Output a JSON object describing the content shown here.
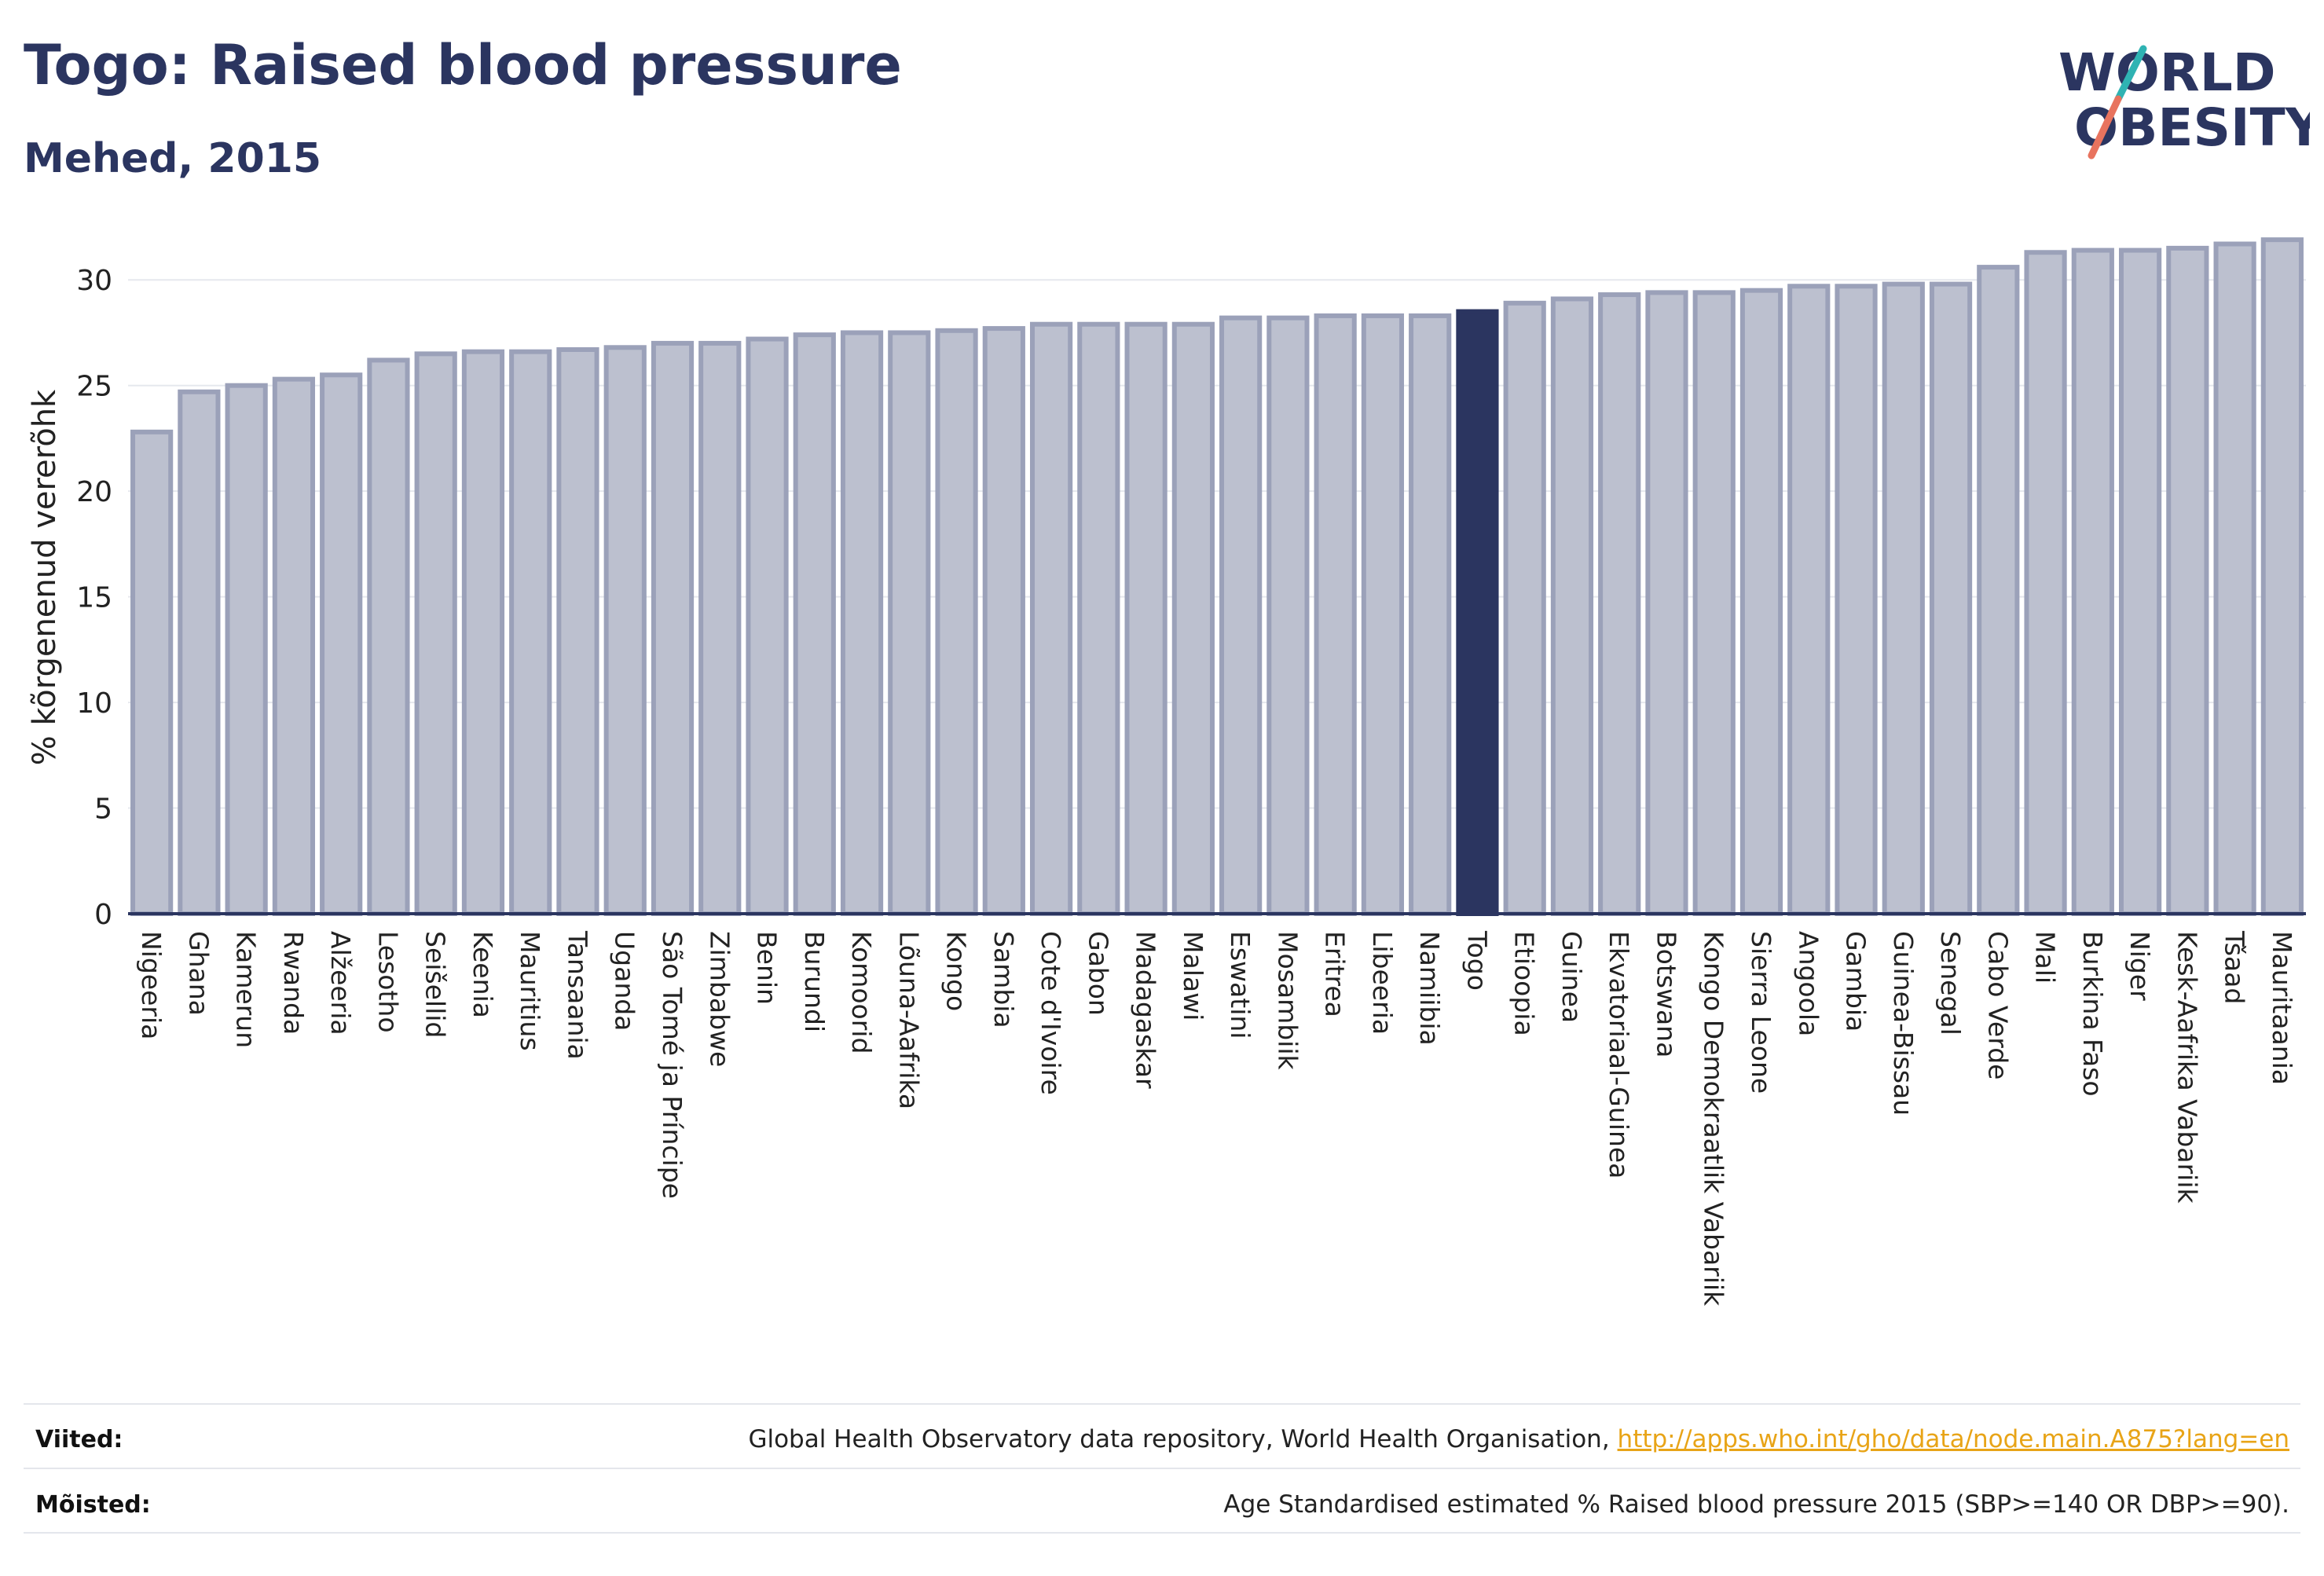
{
  "header": {
    "title": "Togo: Raised blood pressure",
    "subtitle": "Mehed, 2015"
  },
  "logo": {
    "line1": "WORLD",
    "line2": "OBESITY",
    "colors": {
      "text": "#2b3560",
      "slash_teal": "#2fb3b3",
      "slash_coral": "#e8735e"
    }
  },
  "colors": {
    "bar_fill": "#bcc0cf",
    "bar_stroke": "#9ba1b9",
    "highlight_fill": "#2b3560",
    "axis": "#2b3560",
    "grid": "#e6e8ee",
    "text": "#222222"
  },
  "chart_data": {
    "type": "bar",
    "ylabel": "% kõrgenenud vererõhk",
    "xlabel": "",
    "ylim": [
      0,
      32.5
    ],
    "yticks": [
      0,
      5,
      10,
      15,
      20,
      25,
      30
    ],
    "grid": true,
    "highlight": "Togo",
    "categories": [
      "Nigeeria",
      "Ghana",
      "Kamerun",
      "Rwanda",
      "Alžeeria",
      "Lesotho",
      "Seišellid",
      "Keenia",
      "Mauritius",
      "Tansaania",
      "Uganda",
      "São Tomé ja Príncipe",
      "Zimbabwe",
      "Benin",
      "Burundi",
      "Komoorid",
      "Lõuna-Aafrika",
      "Kongo",
      "Sambia",
      "Cote d'Ivoire",
      "Gabon",
      "Madagaskar",
      "Malawi",
      "Eswatini",
      "Mosambiik",
      "Eritrea",
      "Libeeria",
      "Namiibia",
      "Togo",
      "Etioopia",
      "Guinea",
      "Ekvatoriaal-Guinea",
      "Botswana",
      "Kongo Demokraatlik Vabariik",
      "Sierra Leone",
      "Angoola",
      "Gambia",
      "Guinea-Bissau",
      "Senegal",
      "Cabo Verde",
      "Mali",
      "Burkina Faso",
      "Niger",
      "Kesk-Aafrika Vabariik",
      "Tšaad",
      "Mauritaania"
    ],
    "values": [
      22.8,
      24.7,
      25.0,
      25.3,
      25.5,
      26.2,
      26.5,
      26.6,
      26.6,
      26.7,
      26.8,
      27.0,
      27.0,
      27.2,
      27.4,
      27.5,
      27.5,
      27.6,
      27.7,
      27.9,
      27.9,
      27.9,
      27.9,
      28.2,
      28.2,
      28.3,
      28.3,
      28.3,
      28.5,
      28.9,
      29.1,
      29.3,
      29.4,
      29.4,
      29.5,
      29.7,
      29.7,
      29.8,
      29.8,
      30.6,
      31.3,
      31.4,
      31.4,
      31.5,
      31.7,
      31.9
    ]
  },
  "footer": {
    "sources_label": "Viited:",
    "sources_text": "Global Health Observatory data repository, World Health Organisation,",
    "sources_link": "http://apps.who.int/gho/data/node.main.A875?lang=en",
    "definitions_label": "Mõisted:",
    "definitions_text": "Age Standardised estimated % Raised blood pressure 2015 (SBP>=140 OR DBP>=90)."
  }
}
